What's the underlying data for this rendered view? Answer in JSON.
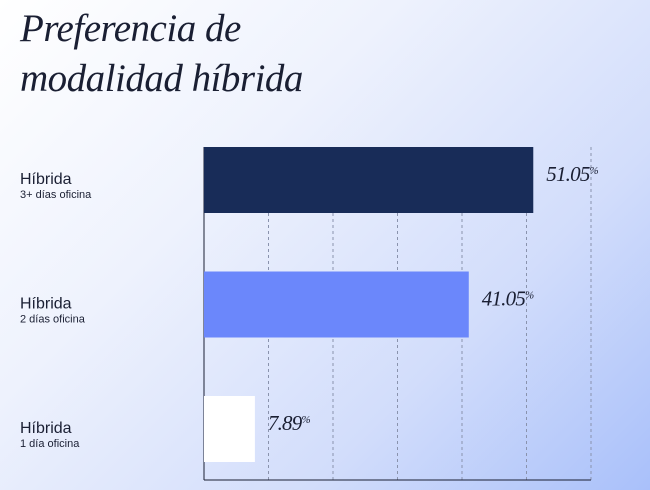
{
  "chart_data": {
    "type": "hbar",
    "title": "Preferencia de modalidad híbrida",
    "categories": [
      "Híbrida",
      "Híbrida",
      "Híbrida"
    ],
    "category_notes": [
      "3+ días oficina",
      "2 días oficina",
      "1 día oficina"
    ],
    "values": [
      51.05,
      41.05,
      7.89
    ],
    "value_unit": "%",
    "colors": [
      "#182c58",
      "#6b87fb",
      "#ffffff"
    ],
    "xlim": [
      0,
      60
    ],
    "xticks": [
      0,
      10,
      20,
      30,
      40,
      50,
      60
    ],
    "grid": true
  }
}
